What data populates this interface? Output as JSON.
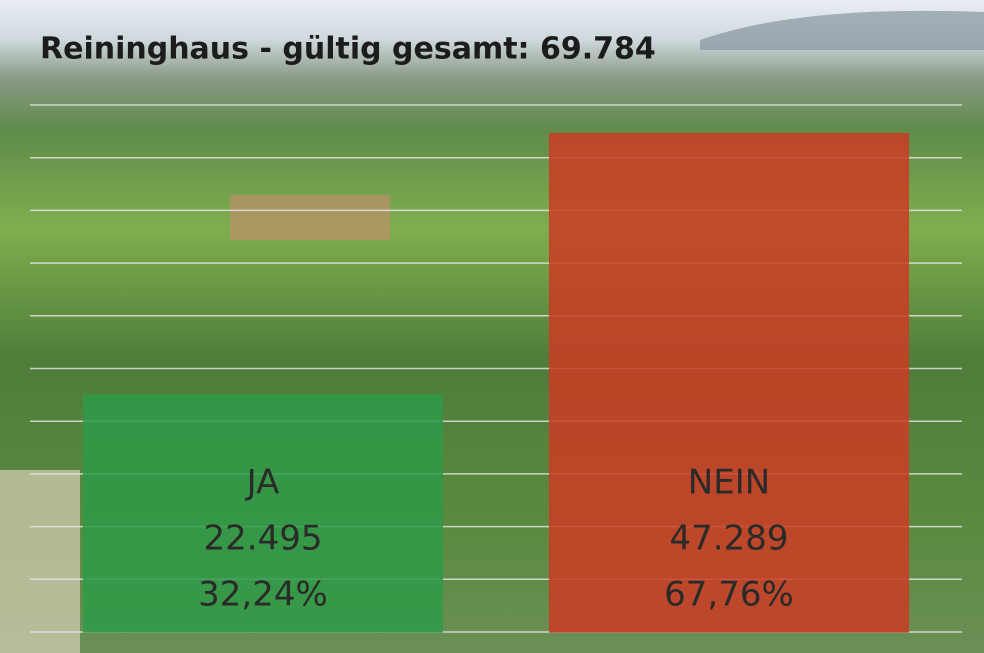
{
  "chart_data": {
    "type": "bar",
    "title": "Reininghaus - gültig gesamt: 69.784",
    "categories": [
      "JA",
      "NEIN"
    ],
    "values": [
      22495,
      47289
    ],
    "value_labels": [
      "22.495",
      "47.289"
    ],
    "share_labels": [
      "32,24%",
      "67,76%"
    ],
    "colors": [
      "#2f9a48",
      "#cc3b24"
    ],
    "ylim": [
      0,
      50000
    ],
    "yticks": [
      0,
      5000,
      10000,
      15000,
      20000,
      25000,
      30000,
      35000,
      40000,
      45000,
      50000
    ],
    "grid": true
  }
}
